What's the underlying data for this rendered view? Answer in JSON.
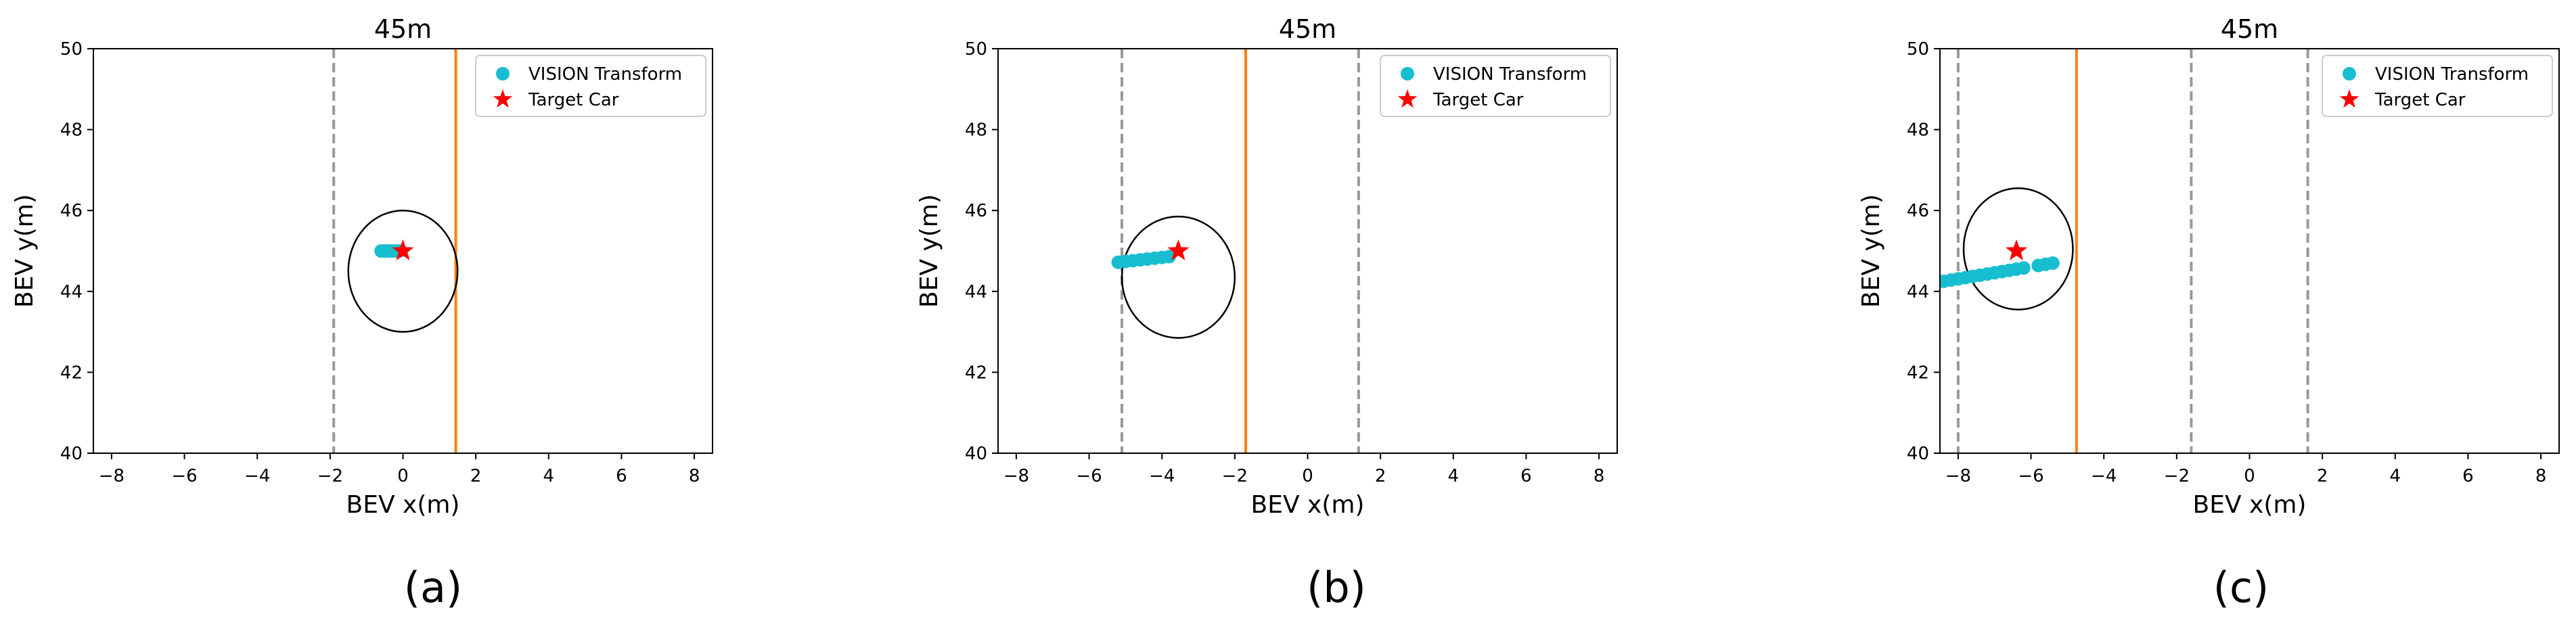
{
  "chart_data": [
    {
      "type": "scatter",
      "title": "45m",
      "xlabel": "BEV x(m)",
      "ylabel": "BEV y(m)",
      "xlim": [
        -8.5,
        8.5
      ],
      "ylim": [
        40,
        50
      ],
      "xticks": [
        -8,
        -6,
        -4,
        -2,
        0,
        2,
        4,
        6,
        8
      ],
      "yticks": [
        40,
        42,
        44,
        46,
        48,
        50
      ],
      "legend_position": "top-right",
      "legend": [
        "VISION Transform",
        "Target Car"
      ],
      "caption": "(a)",
      "lane_lines_dashed": [
        -1.9
      ],
      "lane_lines_solid": [
        1.45
      ],
      "target": {
        "x": 0.0,
        "y": 45.0
      },
      "ellipse": {
        "cx": 0.0,
        "cy": 44.5,
        "rx": 1.5,
        "ry": 1.5
      },
      "series": [
        {
          "name": "VISION Transform",
          "x": [
            -0.6,
            -0.5,
            -0.4,
            -0.3,
            -0.2,
            -0.1
          ],
          "y": [
            45.0,
            45.0,
            45.0,
            45.0,
            45.0,
            45.0
          ]
        }
      ]
    },
    {
      "type": "scatter",
      "title": "45m",
      "xlabel": "BEV x(m)",
      "ylabel": "BEV y(m)",
      "xlim": [
        -8.5,
        8.5
      ],
      "ylim": [
        40,
        50
      ],
      "xticks": [
        -8,
        -6,
        -4,
        -2,
        0,
        2,
        4,
        6,
        8
      ],
      "yticks": [
        40,
        42,
        44,
        46,
        48,
        50
      ],
      "legend_position": "top-right",
      "legend": [
        "VISION Transform",
        "Target Car"
      ],
      "caption": "(b)",
      "lane_lines_dashed": [
        -5.1,
        1.4
      ],
      "lane_lines_solid": [
        -1.7
      ],
      "target": {
        "x": -3.55,
        "y": 45.0
      },
      "ellipse": {
        "cx": -3.55,
        "cy": 44.35,
        "rx": 1.55,
        "ry": 1.5
      },
      "series": [
        {
          "name": "VISION Transform",
          "x": [
            -5.2,
            -5.0,
            -4.8,
            -4.6,
            -4.4,
            -4.2,
            -4.0,
            -3.8
          ],
          "y": [
            44.72,
            44.74,
            44.76,
            44.78,
            44.8,
            44.82,
            44.84,
            44.86
          ]
        }
      ]
    },
    {
      "type": "scatter",
      "title": "45m",
      "xlabel": "BEV x(m)",
      "ylabel": "BEV y(m)",
      "xlim": [
        -8.5,
        8.5
      ],
      "ylim": [
        40,
        50
      ],
      "xticks": [
        -8,
        -6,
        -4,
        -2,
        0,
        2,
        4,
        6,
        8
      ],
      "yticks": [
        40,
        42,
        44,
        46,
        48,
        50
      ],
      "legend_position": "top-right",
      "legend": [
        "VISION Transform",
        "Target Car"
      ],
      "caption": "(c)",
      "lane_lines_dashed": [
        -8.0,
        -1.6,
        1.6
      ],
      "lane_lines_solid": [
        -4.75
      ],
      "target": {
        "x": -6.4,
        "y": 45.0
      },
      "ellipse": {
        "cx": -6.35,
        "cy": 45.05,
        "rx": 1.5,
        "ry": 1.5
      },
      "series": [
        {
          "name": "VISION Transform",
          "x": [
            -8.4,
            -8.2,
            -8.0,
            -7.8,
            -7.6,
            -7.4,
            -7.2,
            -7.0,
            -6.8,
            -6.6,
            -6.4,
            -6.2,
            -5.8,
            -5.6,
            -5.4
          ],
          "y": [
            44.25,
            44.28,
            44.31,
            44.34,
            44.37,
            44.4,
            44.43,
            44.46,
            44.49,
            44.52,
            44.55,
            44.58,
            44.64,
            44.67,
            44.7
          ]
        }
      ]
    }
  ],
  "colors": {
    "scatter": "#17becf",
    "target": "#ff0000",
    "solid_line": "#ff7f0e",
    "dashed_line": "#999999",
    "axis": "#000000",
    "ellipse": "#000000",
    "legend_border": "#cccccc"
  }
}
